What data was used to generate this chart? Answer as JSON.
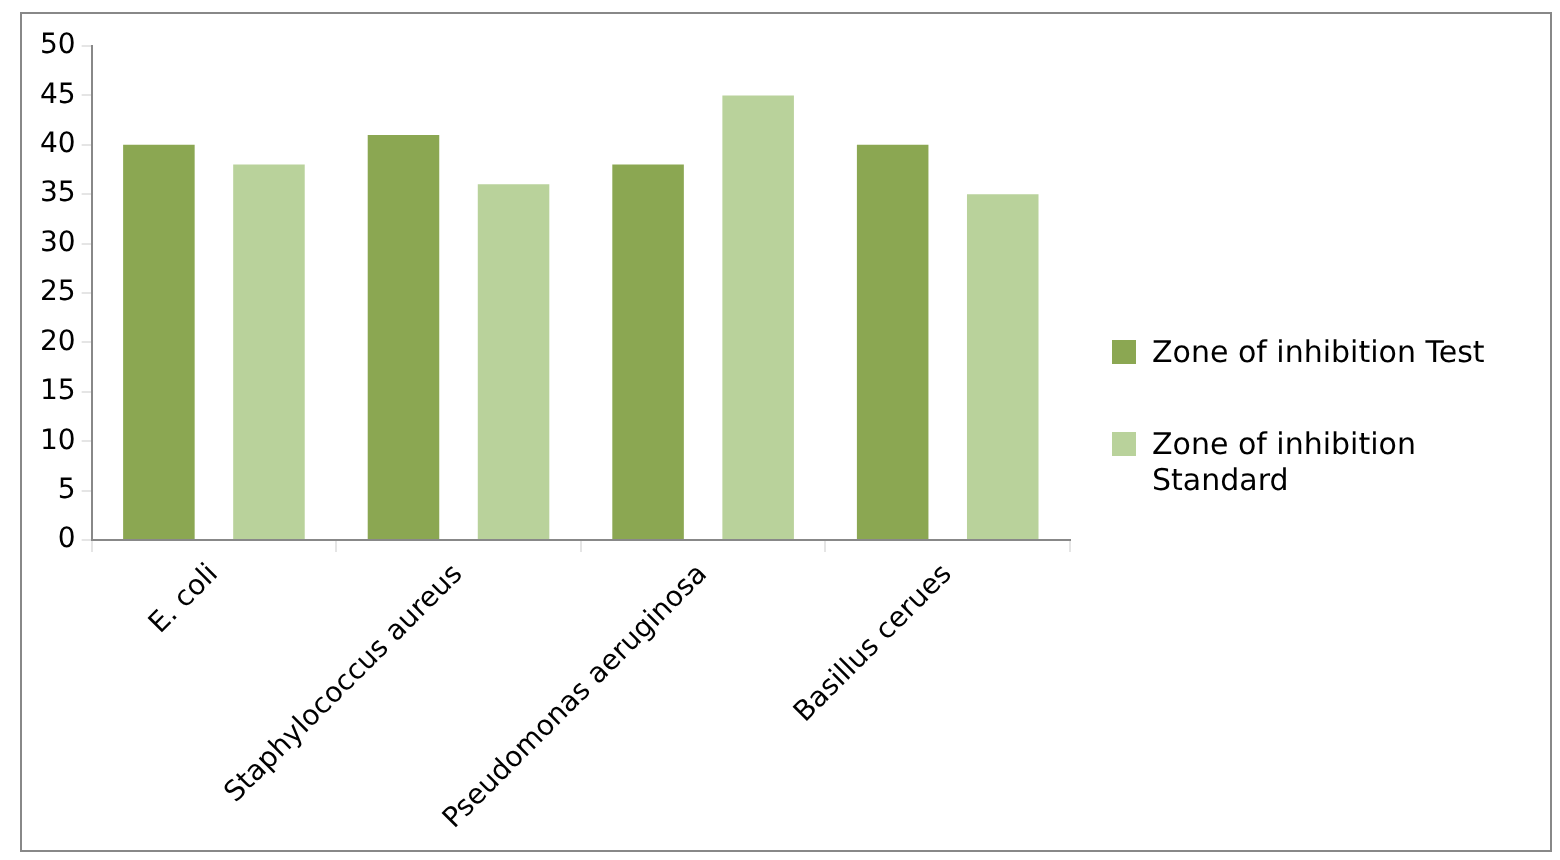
{
  "chart_data": {
    "type": "bar",
    "categories": [
      "E. coli",
      "Staphylococcus aureus",
      "Pseudomonas aeruginosa",
      "Basillus cerues"
    ],
    "series": [
      {
        "name": "Zone of inhibition Test",
        "color": "#8ba752",
        "values": [
          40,
          41,
          38,
          40
        ]
      },
      {
        "name": "Zone of inhibition Standard",
        "color": "#b9d29b",
        "values": [
          38,
          36,
          45,
          35
        ]
      }
    ],
    "ylim": [
      0,
      50
    ],
    "yticks": [
      0,
      5,
      10,
      15,
      20,
      25,
      30,
      35,
      40,
      45,
      50
    ],
    "grid": false,
    "legend": "right"
  }
}
